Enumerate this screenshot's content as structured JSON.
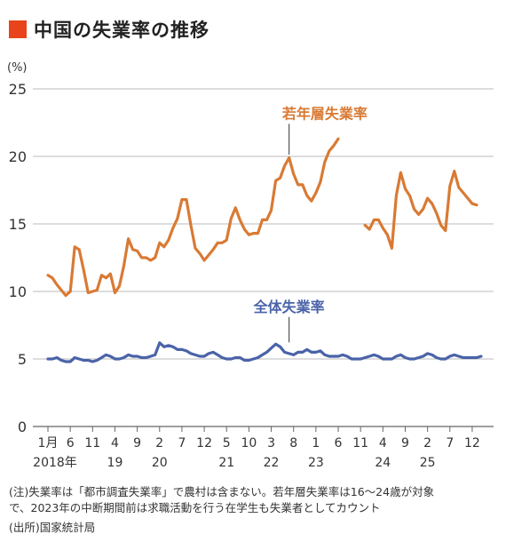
{
  "title": "中国の失業率の推移",
  "title_color": "#e8431a",
  "notes": [
    "(注)失業率は「都市調査失業率」で農村は含まない。若年層失業率は16～24歳が対象",
    "で、2023年の中断期間前は求職活動を行う在学生も失業者としてカウント",
    "(出所)国家統計局"
  ],
  "chart_data": {
    "type": "line",
    "ylabel": "(%)",
    "ylim": [
      0,
      25
    ],
    "yticks": [
      0,
      5,
      10,
      15,
      20,
      25
    ],
    "grid": true,
    "x_range": [
      0,
      97
    ],
    "x_ticks": [
      {
        "i": 0,
        "month": "1月",
        "year": "2018年"
      },
      {
        "i": 5,
        "month": "6",
        "year": ""
      },
      {
        "i": 10,
        "month": "11",
        "year": ""
      },
      {
        "i": 15,
        "month": "4",
        "year": "19"
      },
      {
        "i": 20,
        "month": "9",
        "year": ""
      },
      {
        "i": 25,
        "month": "2",
        "year": "20"
      },
      {
        "i": 30,
        "month": "7",
        "year": ""
      },
      {
        "i": 35,
        "month": "12",
        "year": ""
      },
      {
        "i": 40,
        "month": "5",
        "year": "21"
      },
      {
        "i": 45,
        "month": "10",
        "year": ""
      },
      {
        "i": 50,
        "month": "3",
        "year": "22"
      },
      {
        "i": 55,
        "month": "8",
        "year": ""
      },
      {
        "i": 60,
        "month": "1",
        "year": "23"
      },
      {
        "i": 65,
        "month": "6",
        "year": ""
      },
      {
        "i": 70,
        "month": "11",
        "year": ""
      },
      {
        "i": 75,
        "month": "4",
        "year": "24"
      },
      {
        "i": 80,
        "month": "9",
        "year": ""
      },
      {
        "i": 85,
        "month": "2",
        "year": "25"
      },
      {
        "i": 90,
        "month": "7",
        "year": ""
      },
      {
        "i": 95,
        "month": "12",
        "year": ""
      }
    ],
    "series": [
      {
        "name": "若年層失業率",
        "color": "#d97a34",
        "label_pos": [
          62,
          22.8
        ],
        "label_anchor": [
          54,
          20.0
        ],
        "segments": [
          {
            "start": 0,
            "values": [
              11.2,
              11.0,
              10.5,
              10.1,
              9.7,
              10.0,
              13.3,
              13.1,
              11.6,
              9.9,
              10.0,
              10.1,
              11.2,
              11.0,
              11.3,
              9.9,
              10.4,
              11.9,
              13.9,
              13.1,
              13.0,
              12.5,
              12.5,
              12.3,
              12.5,
              13.6,
              13.3,
              13.8,
              14.7,
              15.4,
              16.8,
              16.8,
              14.9,
              13.2,
              12.8,
              12.3,
              12.7,
              13.1,
              13.6,
              13.6,
              13.8,
              15.4,
              16.2,
              15.3,
              14.6,
              14.2,
              14.3,
              14.3,
              15.3,
              15.3,
              16.0,
              18.2,
              18.4,
              19.3,
              19.9,
              18.7,
              17.9,
              17.9,
              17.1,
              16.7,
              17.3,
              18.1,
              19.6,
              20.4,
              20.8,
              21.3
            ]
          },
          {
            "start": 71,
            "values": [
              14.9,
              14.6,
              15.3,
              15.3,
              14.7,
              14.2,
              13.2,
              17.1,
              18.8,
              17.6,
              17.1,
              16.1,
              15.7,
              16.1,
              16.9,
              16.5,
              15.8,
              14.9,
              14.5,
              17.8,
              18.9,
              17.7,
              17.3,
              16.9,
              16.5,
              16.4
            ]
          }
        ]
      },
      {
        "name": "全体失業率",
        "color": "#4a63a8",
        "label_pos": [
          54,
          8.5
        ],
        "label_anchor": [
          54,
          6.1
        ],
        "segments": [
          {
            "start": 0,
            "values": [
              5.0,
              5.0,
              5.1,
              4.9,
              4.8,
              4.8,
              5.1,
              5.0,
              4.9,
              4.9,
              4.8,
              4.9,
              5.1,
              5.3,
              5.2,
              5.0,
              5.0,
              5.1,
              5.3,
              5.2,
              5.2,
              5.1,
              5.1,
              5.2,
              5.3,
              6.2,
              5.9,
              6.0,
              5.9,
              5.7,
              5.7,
              5.6,
              5.4,
              5.3,
              5.2,
              5.2,
              5.4,
              5.5,
              5.3,
              5.1,
              5.0,
              5.0,
              5.1,
              5.1,
              4.9,
              4.9,
              5.0,
              5.1,
              5.3,
              5.5,
              5.8,
              6.1,
              5.9,
              5.5,
              5.4,
              5.3,
              5.5,
              5.5,
              5.7,
              5.5,
              5.5,
              5.6,
              5.3,
              5.2,
              5.2,
              5.2,
              5.3,
              5.2,
              5.0,
              5.0,
              5.0,
              5.1,
              5.2,
              5.3,
              5.2,
              5.0,
              5.0,
              5.0,
              5.2,
              5.3,
              5.1,
              5.0,
              5.0,
              5.1,
              5.2,
              5.4,
              5.3,
              5.1,
              5.0,
              5.0,
              5.2,
              5.3,
              5.2,
              5.1,
              5.1,
              5.1,
              5.1,
              5.2
            ]
          }
        ]
      }
    ]
  }
}
